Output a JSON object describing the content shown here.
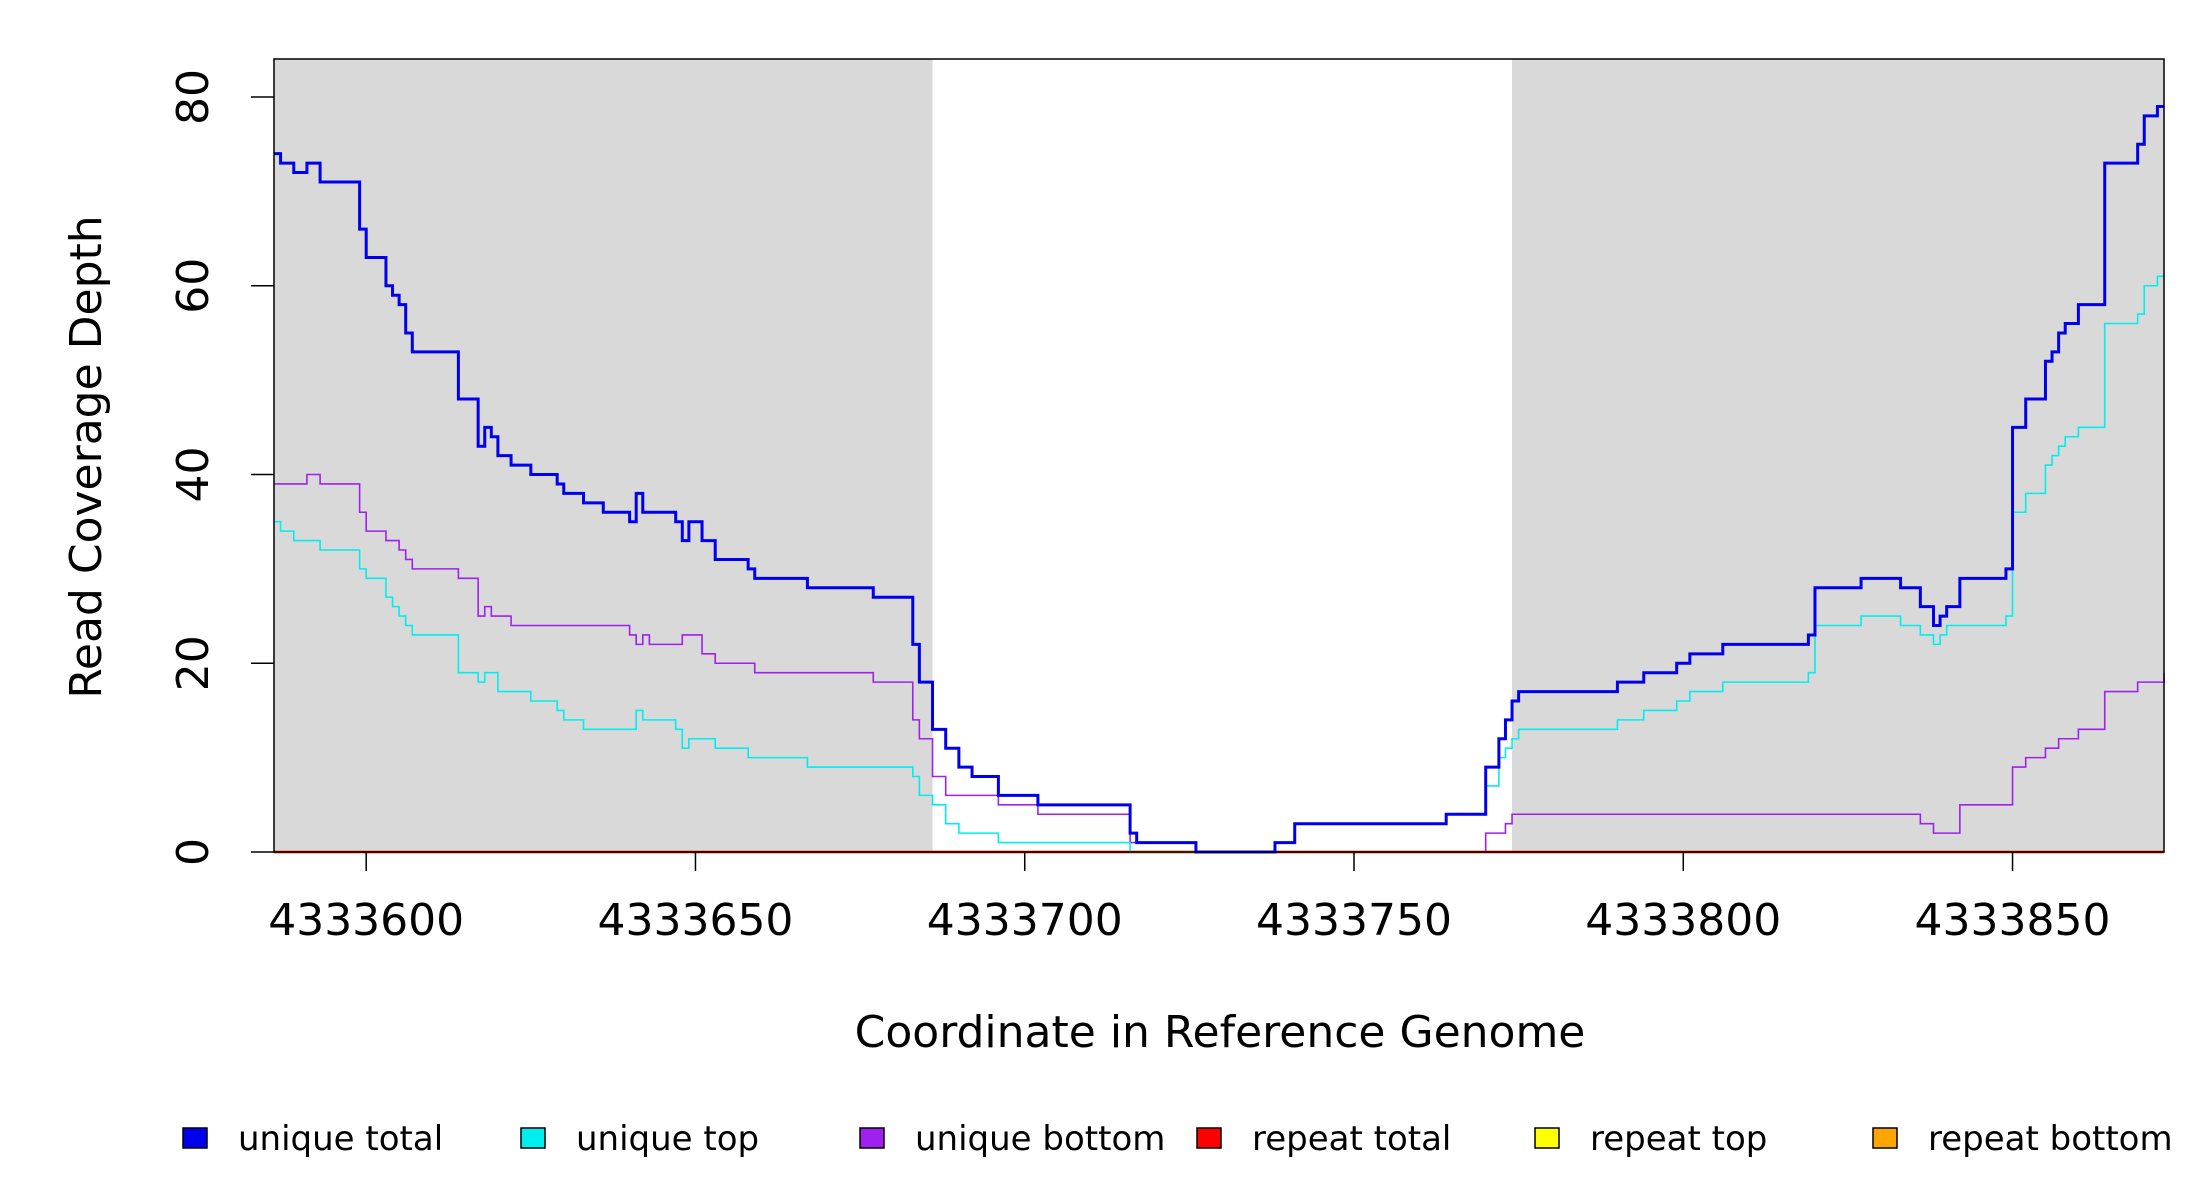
{
  "chart_data": {
    "type": "line",
    "step": true,
    "xlabel": "Coordinate in Reference Genome",
    "ylabel": "Read Coverage Depth",
    "xlim": [
      4333586,
      4333873
    ],
    "ylim": [
      0,
      84
    ],
    "xticks": [
      4333600,
      4333650,
      4333700,
      4333750,
      4333800,
      4333850
    ],
    "xtick_labels": [
      "4333600",
      "4333650",
      "4333700",
      "4333750",
      "4333800",
      "4333850"
    ],
    "yticks": [
      0,
      20,
      40,
      60,
      80
    ],
    "ytick_labels": [
      "0",
      "20",
      "40",
      "60",
      "80"
    ],
    "shaded_regions": [
      [
        4333586,
        4333686
      ],
      [
        4333774,
        4333873
      ]
    ],
    "shade_color": "#d9d9d9",
    "legend_position": "bottom",
    "series": [
      {
        "name": "unique total",
        "color": "#0000ee",
        "points": [
          [
            4333586,
            74
          ],
          [
            4333587,
            73
          ],
          [
            4333589,
            72
          ],
          [
            4333591,
            73
          ],
          [
            4333593,
            71
          ],
          [
            4333599,
            66
          ],
          [
            4333600,
            63
          ],
          [
            4333603,
            60
          ],
          [
            4333604,
            59
          ],
          [
            4333605,
            58
          ],
          [
            4333606,
            55
          ],
          [
            4333607,
            53
          ],
          [
            4333614,
            48
          ],
          [
            4333617,
            43
          ],
          [
            4333618,
            45
          ],
          [
            4333619,
            44
          ],
          [
            4333620,
            42
          ],
          [
            4333622,
            41
          ],
          [
            4333625,
            40
          ],
          [
            4333629,
            39
          ],
          [
            4333630,
            38
          ],
          [
            4333633,
            37
          ],
          [
            4333636,
            36
          ],
          [
            4333640,
            35
          ],
          [
            4333641,
            38
          ],
          [
            4333642,
            36
          ],
          [
            4333647,
            35
          ],
          [
            4333648,
            33
          ],
          [
            4333649,
            35
          ],
          [
            4333651,
            33
          ],
          [
            4333653,
            31
          ],
          [
            4333658,
            30
          ],
          [
            4333659,
            29
          ],
          [
            4333667,
            28
          ],
          [
            4333677,
            27
          ],
          [
            4333683,
            22
          ],
          [
            4333684,
            18
          ],
          [
            4333686,
            13
          ],
          [
            4333688,
            11
          ],
          [
            4333690,
            9
          ],
          [
            4333692,
            8
          ],
          [
            4333696,
            6
          ],
          [
            4333702,
            5
          ],
          [
            4333716,
            2
          ],
          [
            4333717,
            1
          ],
          [
            4333726,
            0
          ],
          [
            4333738,
            1
          ],
          [
            4333741,
            3
          ],
          [
            4333764,
            4
          ],
          [
            4333770,
            9
          ],
          [
            4333772,
            12
          ],
          [
            4333773,
            14
          ],
          [
            4333774,
            16
          ],
          [
            4333775,
            17
          ],
          [
            4333790,
            18
          ],
          [
            4333794,
            19
          ],
          [
            4333799,
            20
          ],
          [
            4333801,
            21
          ],
          [
            4333806,
            22
          ],
          [
            4333819,
            23
          ],
          [
            4333820,
            28
          ],
          [
            4333827,
            29
          ],
          [
            4333833,
            28
          ],
          [
            4333836,
            26
          ],
          [
            4333838,
            24
          ],
          [
            4333839,
            25
          ],
          [
            4333840,
            26
          ],
          [
            4333842,
            29
          ],
          [
            4333849,
            30
          ],
          [
            4333850,
            45
          ],
          [
            4333852,
            48
          ],
          [
            4333855,
            52
          ],
          [
            4333856,
            53
          ],
          [
            4333857,
            55
          ],
          [
            4333858,
            56
          ],
          [
            4333860,
            58
          ],
          [
            4333864,
            73
          ],
          [
            4333869,
            75
          ],
          [
            4333870,
            78
          ],
          [
            4333872,
            79
          ],
          [
            4333873,
            79
          ]
        ]
      },
      {
        "name": "unique top",
        "color": "#00eeee",
        "points": [
          [
            4333586,
            35
          ],
          [
            4333587,
            34
          ],
          [
            4333589,
            33
          ],
          [
            4333593,
            32
          ],
          [
            4333599,
            30
          ],
          [
            4333600,
            29
          ],
          [
            4333603,
            27
          ],
          [
            4333604,
            26
          ],
          [
            4333605,
            25
          ],
          [
            4333606,
            24
          ],
          [
            4333607,
            23
          ],
          [
            4333614,
            19
          ],
          [
            4333617,
            18
          ],
          [
            4333618,
            19
          ],
          [
            4333620,
            17
          ],
          [
            4333625,
            16
          ],
          [
            4333629,
            15
          ],
          [
            4333630,
            14
          ],
          [
            4333633,
            13
          ],
          [
            4333641,
            15
          ],
          [
            4333642,
            14
          ],
          [
            4333647,
            13
          ],
          [
            4333648,
            11
          ],
          [
            4333649,
            12
          ],
          [
            4333653,
            11
          ],
          [
            4333658,
            10
          ],
          [
            4333667,
            9
          ],
          [
            4333677,
            9
          ],
          [
            4333683,
            8
          ],
          [
            4333684,
            6
          ],
          [
            4333686,
            5
          ],
          [
            4333688,
            3
          ],
          [
            4333690,
            2
          ],
          [
            4333692,
            2
          ],
          [
            4333696,
            1
          ],
          [
            4333716,
            0
          ],
          [
            4333738,
            1
          ],
          [
            4333741,
            3
          ],
          [
            4333764,
            4
          ],
          [
            4333770,
            7
          ],
          [
            4333772,
            10
          ],
          [
            4333773,
            11
          ],
          [
            4333774,
            12
          ],
          [
            4333775,
            13
          ],
          [
            4333790,
            14
          ],
          [
            4333794,
            15
          ],
          [
            4333799,
            16
          ],
          [
            4333801,
            17
          ],
          [
            4333806,
            18
          ],
          [
            4333819,
            19
          ],
          [
            4333820,
            24
          ],
          [
            4333827,
            25
          ],
          [
            4333833,
            24
          ],
          [
            4333836,
            23
          ],
          [
            4333838,
            22
          ],
          [
            4333839,
            23
          ],
          [
            4333840,
            24
          ],
          [
            4333849,
            25
          ],
          [
            4333850,
            36
          ],
          [
            4333852,
            38
          ],
          [
            4333855,
            41
          ],
          [
            4333856,
            42
          ],
          [
            4333857,
            43
          ],
          [
            4333858,
            44
          ],
          [
            4333860,
            45
          ],
          [
            4333864,
            56
          ],
          [
            4333869,
            57
          ],
          [
            4333870,
            60
          ],
          [
            4333872,
            61
          ],
          [
            4333873,
            61
          ]
        ]
      },
      {
        "name": "unique bottom",
        "color": "#a020f0",
        "points": [
          [
            4333586,
            39
          ],
          [
            4333591,
            40
          ],
          [
            4333593,
            39
          ],
          [
            4333599,
            36
          ],
          [
            4333600,
            34
          ],
          [
            4333603,
            33
          ],
          [
            4333605,
            32
          ],
          [
            4333606,
            31
          ],
          [
            4333607,
            30
          ],
          [
            4333614,
            29
          ],
          [
            4333617,
            25
          ],
          [
            4333618,
            26
          ],
          [
            4333619,
            25
          ],
          [
            4333622,
            24
          ],
          [
            4333640,
            23
          ],
          [
            4333641,
            22
          ],
          [
            4333642,
            23
          ],
          [
            4333643,
            22
          ],
          [
            4333647,
            22
          ],
          [
            4333648,
            23
          ],
          [
            4333651,
            21
          ],
          [
            4333653,
            20
          ],
          [
            4333659,
            19
          ],
          [
            4333677,
            18
          ],
          [
            4333683,
            14
          ],
          [
            4333684,
            12
          ],
          [
            4333686,
            8
          ],
          [
            4333688,
            6
          ],
          [
            4333696,
            5
          ],
          [
            4333702,
            4
          ],
          [
            4333716,
            1
          ],
          [
            4333717,
            1
          ],
          [
            4333726,
            0
          ],
          [
            4333764,
            0
          ],
          [
            4333770,
            2
          ],
          [
            4333773,
            3
          ],
          [
            4333774,
            4
          ],
          [
            4333836,
            3
          ],
          [
            4333838,
            2
          ],
          [
            4333842,
            5
          ],
          [
            4333850,
            9
          ],
          [
            4333852,
            10
          ],
          [
            4333855,
            11
          ],
          [
            4333857,
            12
          ],
          [
            4333860,
            13
          ],
          [
            4333864,
            17
          ],
          [
            4333869,
            18
          ],
          [
            4333873,
            19
          ]
        ]
      },
      {
        "name": "repeat total",
        "color": "#ff0000",
        "points": [
          [
            4333586,
            0
          ],
          [
            4333873,
            0
          ]
        ]
      },
      {
        "name": "repeat top",
        "color": "#ffff00",
        "points": [
          [
            4333586,
            0
          ],
          [
            4333873,
            0
          ]
        ]
      },
      {
        "name": "repeat bottom",
        "color": "#ffa500",
        "points": [
          [
            4333586,
            0
          ],
          [
            4333873,
            0
          ]
        ]
      }
    ]
  }
}
